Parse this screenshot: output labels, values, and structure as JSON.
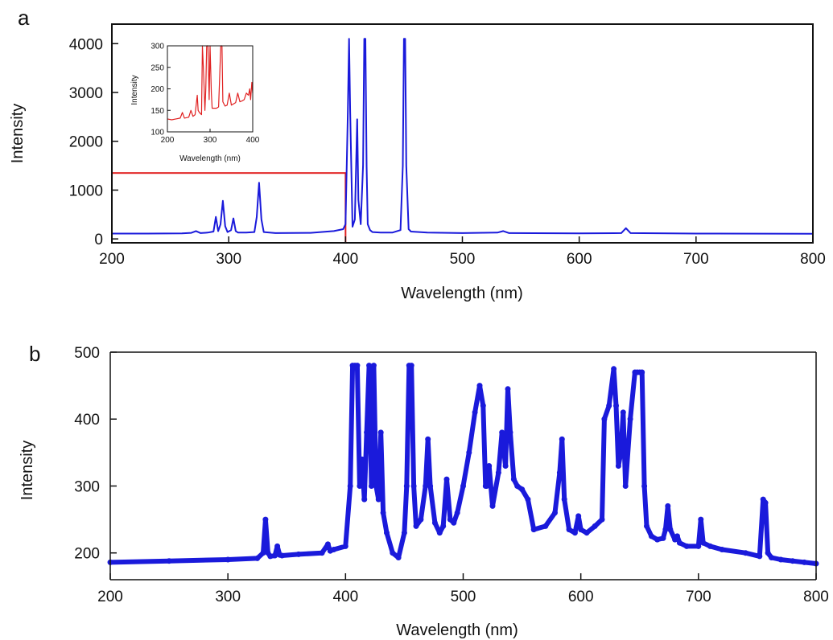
{
  "chart_data": [
    {
      "type": "line",
      "panel_label": "a",
      "xlabel": "Wavelength (nm)",
      "ylabel": "Intensity",
      "xlim": [
        200,
        800
      ],
      "ylim": [
        -80,
        4400
      ],
      "xticks": [
        200,
        300,
        400,
        500,
        600,
        700,
        800
      ],
      "yticks": [
        0,
        1000,
        2000,
        3000,
        4000
      ],
      "series_color": "#1a1adb",
      "series": [
        {
          "x": [
            200,
            230,
            260,
            268,
            272,
            276,
            282,
            287,
            289,
            291,
            293,
            295,
            297,
            299,
            302,
            304,
            306,
            308,
            315,
            322,
            324,
            326,
            328,
            330,
            340,
            370,
            390,
            398,
            400,
            402,
            403,
            404,
            406,
            408,
            410,
            411,
            413,
            415,
            416,
            417,
            418,
            419,
            421,
            423,
            430,
            440,
            447,
            449,
            450,
            451,
            452,
            454,
            456,
            470,
            500,
            530,
            535,
            540,
            600,
            636,
            640,
            644,
            700,
            800
          ],
          "y": [
            110,
            110,
            115,
            125,
            160,
            120,
            130,
            150,
            450,
            160,
            300,
            780,
            260,
            140,
            180,
            420,
            160,
            130,
            130,
            140,
            450,
            1150,
            400,
            140,
            120,
            125,
            160,
            200,
            300,
            2600,
            4100,
            2600,
            250,
            400,
            2450,
            800,
            300,
            1500,
            4100,
            4100,
            1500,
            300,
            180,
            140,
            130,
            130,
            180,
            1500,
            4100,
            4100,
            1500,
            200,
            150,
            130,
            120,
            130,
            160,
            120,
            115,
            120,
            220,
            120,
            110,
            105
          ]
        }
      ],
      "highlight_box": {
        "x_range": [
          200,
          400
        ],
        "y_range": [
          -80,
          1350
        ],
        "color": "#e02020"
      },
      "inset": {
        "xlabel": "Wavelength (nm)",
        "ylabel": "Intensity",
        "xlim": [
          200,
          400
        ],
        "ylim": [
          100,
          300
        ],
        "xticks": [
          200,
          300,
          400
        ],
        "yticks": [
          100,
          150,
          200,
          250,
          300
        ],
        "series_color": "#e02020",
        "x": [
          200,
          210,
          220,
          230,
          235,
          240,
          250,
          255,
          260,
          265,
          270,
          272,
          275,
          280,
          282,
          285,
          288,
          290,
          292,
          295,
          298,
          300,
          303,
          305,
          310,
          315,
          320,
          325,
          328,
          330,
          335,
          340,
          345,
          350,
          355,
          360,
          365,
          370,
          375,
          380,
          385,
          390,
          393,
          395,
          398,
          400
        ],
        "y": [
          130,
          128,
          130,
          132,
          145,
          132,
          134,
          150,
          136,
          140,
          185,
          150,
          145,
          140,
          300,
          230,
          150,
          200,
          300,
          300,
          175,
          300,
          190,
          155,
          155,
          155,
          158,
          300,
          300,
          170,
          160,
          162,
          190,
          162,
          165,
          168,
          190,
          170,
          172,
          175,
          190,
          185,
          200,
          175,
          215,
          190
        ]
      }
    },
    {
      "type": "scatter",
      "panel_label": "b",
      "xlabel": "Wavelength (nm)",
      "ylabel": "Intensity",
      "xlim": [
        200,
        800
      ],
      "ylim": [
        160,
        500
      ],
      "xticks": [
        200,
        300,
        400,
        500,
        600,
        700,
        800
      ],
      "yticks": [
        200,
        300,
        400,
        500
      ],
      "series_color": "#1a1adb",
      "series": [
        {
          "x": [
            200,
            250,
            300,
            325,
            330,
            332,
            334,
            336,
            340,
            342,
            344,
            346,
            360,
            380,
            385,
            387,
            390,
            400,
            404,
            406,
            408,
            410,
            412,
            414,
            416,
            418,
            420,
            422,
            424,
            426,
            428,
            430,
            432,
            435,
            440,
            445,
            450,
            452,
            454,
            456,
            458,
            460,
            464,
            468,
            470,
            472,
            476,
            480,
            483,
            486,
            489,
            492,
            495,
            500,
            505,
            510,
            514,
            517,
            519,
            520,
            522,
            525,
            530,
            533,
            536,
            538,
            540,
            543,
            546,
            550,
            555,
            560,
            570,
            578,
            582,
            584,
            586,
            590,
            595,
            598,
            600,
            605,
            612,
            618,
            620,
            624,
            628,
            630,
            632,
            634,
            636,
            638,
            642,
            646,
            648,
            650,
            652,
            654,
            656,
            660,
            665,
            670,
            672,
            674,
            676,
            680,
            682,
            684,
            690,
            700,
            702,
            704,
            710,
            720,
            740,
            752,
            755,
            757,
            759,
            762,
            770,
            780,
            790,
            800
          ],
          "y": [
            186,
            188,
            190,
            192,
            200,
            250,
            200,
            195,
            196,
            210,
            197,
            196,
            198,
            200,
            213,
            203,
            205,
            210,
            300,
            480,
            480,
            480,
            300,
            340,
            280,
            380,
            480,
            300,
            480,
            300,
            280,
            380,
            260,
            230,
            200,
            193,
            230,
            300,
            480,
            480,
            300,
            240,
            250,
            300,
            370,
            300,
            245,
            230,
            240,
            310,
            250,
            245,
            260,
            300,
            350,
            410,
            450,
            420,
            300,
            300,
            330,
            270,
            320,
            380,
            330,
            445,
            380,
            310,
            300,
            295,
            280,
            235,
            240,
            260,
            320,
            370,
            280,
            235,
            230,
            255,
            235,
            230,
            240,
            250,
            400,
            420,
            475,
            420,
            330,
            350,
            410,
            300,
            400,
            470,
            470,
            470,
            470,
            300,
            240,
            225,
            220,
            222,
            235,
            270,
            235,
            220,
            225,
            215,
            210,
            210,
            250,
            215,
            210,
            205,
            200,
            195,
            280,
            275,
            200,
            193,
            190,
            188,
            186,
            184
          ]
        }
      ]
    }
  ]
}
